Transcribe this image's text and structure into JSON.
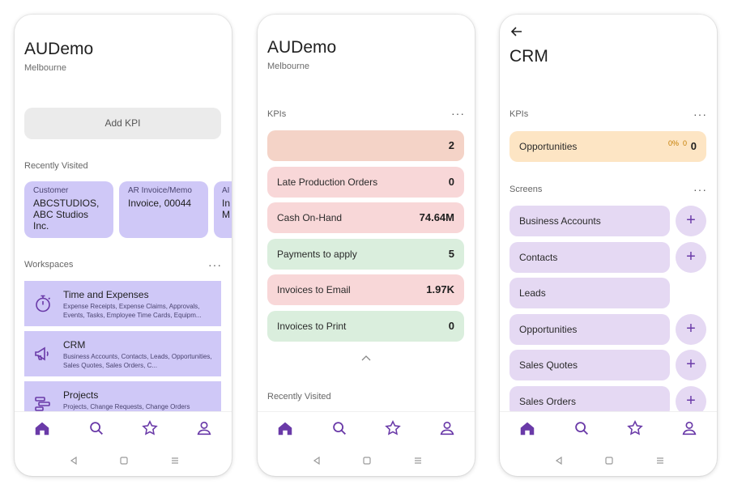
{
  "colors": {
    "accent": "#6a3aa8",
    "lavender": "#cfc8f7",
    "light_purple": "#e5d9f3",
    "kpi_salmon": "#f4d3c7",
    "kpi_pink": "#f8d7d8",
    "kpi_green": "#daeedd",
    "kpi_amber": "#fde5c4"
  },
  "screen1": {
    "title": "AUDemo",
    "subtitle": "Melbourne",
    "add_kpi_label": "Add KPI",
    "recently_visited_label": "Recently Visited",
    "recent_items": [
      {
        "type": "Customer",
        "name": "ABCSTUDIOS,\nABC Studios\nInc."
      },
      {
        "type": "AR Invoice/Memo",
        "name": "Invoice, 00044"
      },
      {
        "type": "AI",
        "name": "In\nM"
      }
    ],
    "workspaces_label": "Workspaces",
    "workspaces": [
      {
        "title": "Time and Expenses",
        "description": "Expense Receipts, Expense Claims, Approvals, Events, Tasks, Employee Time Cards, Equipm...",
        "icon": "stopwatch-icon"
      },
      {
        "title": "CRM",
        "description": "Business Accounts, Contacts, Leads, Opportunities, Sales Quotes, Sales Orders, C...",
        "icon": "megaphone-icon"
      },
      {
        "title": "Projects",
        "description": "Projects, Change Requests, Change Orders",
        "icon": "gantt-icon"
      }
    ]
  },
  "screen2": {
    "title": "AUDemo",
    "subtitle": "Melbourne",
    "kpis_label": "KPIs",
    "kpis": [
      {
        "label": "",
        "value": "2"
      },
      {
        "label": "Late Production Orders",
        "value": "0"
      },
      {
        "label": "Cash On-Hand",
        "value": "74.64M"
      },
      {
        "label": "Payments to apply",
        "value": "5"
      },
      {
        "label": "Invoices to Email",
        "value": "1.97K"
      },
      {
        "label": "Invoices to Print",
        "value": "0"
      }
    ],
    "recently_visited_label": "Recently Visited"
  },
  "screen3": {
    "title": "CRM",
    "kpis_label": "KPIs",
    "kpi": {
      "label": "Opportunities",
      "percent": "0%",
      "delta": "0",
      "value": "0"
    },
    "screens_label": "Screens",
    "screens": [
      {
        "label": "Business Accounts",
        "has_add": true
      },
      {
        "label": "Contacts",
        "has_add": true
      },
      {
        "label": "Leads",
        "has_add": false
      },
      {
        "label": "Opportunities",
        "has_add": true
      },
      {
        "label": "Sales Quotes",
        "has_add": true
      },
      {
        "label": "Sales Orders",
        "has_add": true
      }
    ]
  },
  "more_glyph": "···",
  "plus_glyph": "+"
}
